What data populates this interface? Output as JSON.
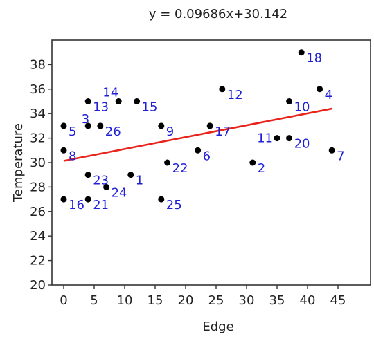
{
  "chart_data": {
    "type": "scatter",
    "title": "y = 0.09686x+30.142",
    "xlabel": "Edge",
    "ylabel": "Temperature",
    "xlim": [
      0,
      50
    ],
    "ylim": [
      20,
      40
    ],
    "xticks": [
      0,
      5,
      10,
      15,
      20,
      25,
      30,
      35,
      40,
      45
    ],
    "yticks": [
      20,
      22,
      24,
      26,
      28,
      30,
      32,
      34,
      36,
      38
    ],
    "grid": false,
    "colors": {
      "points": "#000000",
      "labels": "#1f1fd6",
      "trend": "#e8241d"
    },
    "trendline": {
      "slope": 0.09686,
      "intercept": 30.142,
      "x_range": [
        0,
        44
      ]
    },
    "points": [
      {
        "label": "1",
        "x": 11,
        "y": 29
      },
      {
        "label": "2",
        "x": 31,
        "y": 30
      },
      {
        "label": "3",
        "x": 4,
        "y": 33
      },
      {
        "label": "4",
        "x": 42,
        "y": 36
      },
      {
        "label": "5",
        "x": 0,
        "y": 33
      },
      {
        "label": "6",
        "x": 22,
        "y": 31
      },
      {
        "label": "7",
        "x": 44,
        "y": 31
      },
      {
        "label": "8",
        "x": 0,
        "y": 31
      },
      {
        "label": "9",
        "x": 16,
        "y": 33
      },
      {
        "label": "10",
        "x": 37,
        "y": 35
      },
      {
        "label": "11",
        "x": 35,
        "y": 32
      },
      {
        "label": "12",
        "x": 26,
        "y": 36
      },
      {
        "label": "13",
        "x": 4,
        "y": 35
      },
      {
        "label": "14",
        "x": 9,
        "y": 35
      },
      {
        "label": "15",
        "x": 12,
        "y": 35
      },
      {
        "label": "16",
        "x": 0,
        "y": 27
      },
      {
        "label": "17",
        "x": 24,
        "y": 33
      },
      {
        "label": "18",
        "x": 39,
        "y": 39
      },
      {
        "label": "20",
        "x": 37,
        "y": 32
      },
      {
        "label": "21",
        "x": 4,
        "y": 27
      },
      {
        "label": "22",
        "x": 17,
        "y": 30
      },
      {
        "label": "23",
        "x": 4,
        "y": 29
      },
      {
        "label": "24",
        "x": 7,
        "y": 28
      },
      {
        "label": "25",
        "x": 16,
        "y": 27
      },
      {
        "label": "26",
        "x": 6,
        "y": 33
      }
    ]
  }
}
